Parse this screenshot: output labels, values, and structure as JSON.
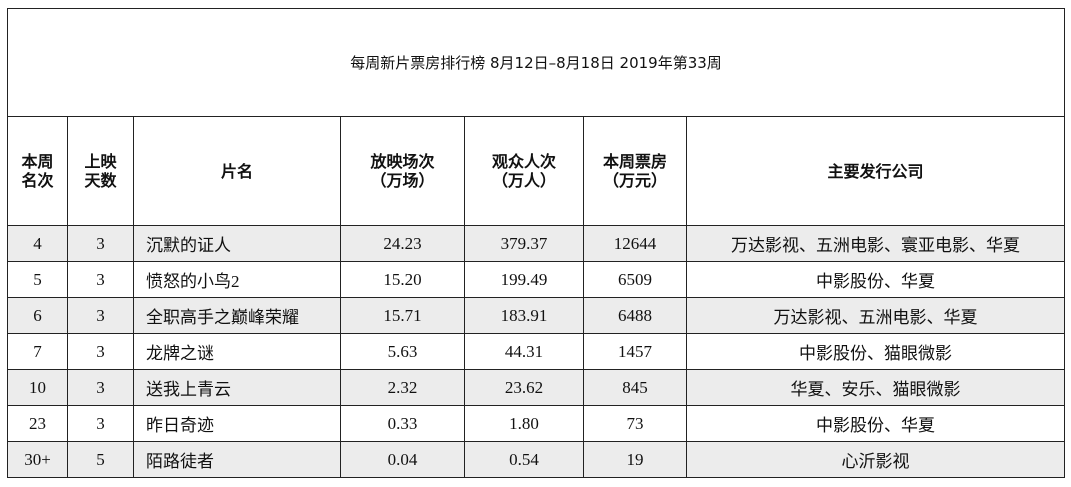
{
  "table": {
    "title": "每周新片票房排行榜  8月12日–8月18日  2019年第33周",
    "headers": [
      "本周\n名次",
      "上映\n天数",
      "片名",
      "放映场次\n（万场）",
      "观众人次\n（万人）",
      "本周票房\n（万元）",
      "主要发行公司"
    ],
    "rows": [
      [
        "4",
        "3",
        "沉默的证人",
        "24.23",
        "379.37",
        "12644",
        "万达影视、五洲电影、寰亚电影、华夏"
      ],
      [
        "5",
        "3",
        "愤怒的小鸟2",
        "15.20",
        "199.49",
        "6509",
        "中影股份、华夏"
      ],
      [
        "6",
        "3",
        "全职高手之巅峰荣耀",
        "15.71",
        "183.91",
        "6488",
        "万达影视、五洲电影、华夏"
      ],
      [
        "7",
        "3",
        "龙牌之谜",
        "5.63",
        "44.31",
        "1457",
        "中影股份、猫眼微影"
      ],
      [
        "10",
        "3",
        "送我上青云",
        "2.32",
        "23.62",
        "845",
        "华夏、安乐、猫眼微影"
      ],
      [
        "23",
        "3",
        "昨日奇迹",
        "0.33",
        "1.80",
        "73",
        "中影股份、华夏"
      ],
      [
        "30+",
        "5",
        "陌路徒者",
        "0.04",
        "0.54",
        "19",
        "心沂影视"
      ]
    ]
  }
}
